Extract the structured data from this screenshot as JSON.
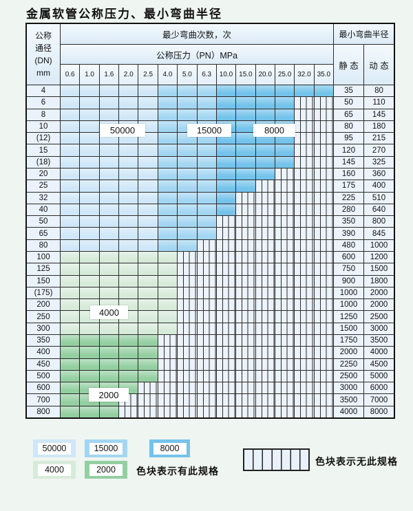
{
  "title": "金属软管公称压力、最小弯曲半径",
  "table": {
    "corner_header_lines": [
      "公称",
      "通径",
      "(DN)",
      "mm"
    ],
    "bend_cycles_header": "最少弯曲次数，次",
    "pressure_header": "公称压力（PN）MPa",
    "radius_header": "最小弯曲半径",
    "static_header": "静 态",
    "dynamic_header": "动 态",
    "pressure_columns": [
      "0.6",
      "1.0",
      "1.6",
      "2.0",
      "2.5",
      "4.0",
      "5.0",
      "6.3",
      "10.0",
      "15.0",
      "20.0",
      "25.0",
      "32.0",
      "35.0"
    ],
    "blue_column_shades": [
      "blue_50000",
      "blue_50000",
      "blue_50000",
      "blue_50000",
      "blue_50000",
      "blue_15000",
      "blue_15000",
      "blue_15000",
      "blue_8000",
      "blue_8000",
      "blue_8000",
      "blue_8000",
      "blue_8000",
      "blue_8000"
    ],
    "rows": [
      {
        "dn": "4",
        "band": "blue",
        "colored_through": "35.0",
        "static": "35",
        "dynamic": "80"
      },
      {
        "dn": "6",
        "band": "blue",
        "colored_through": "25.0",
        "static": "50",
        "dynamic": "110"
      },
      {
        "dn": "8",
        "band": "blue",
        "colored_through": "25.0",
        "static": "65",
        "dynamic": "145"
      },
      {
        "dn": "10",
        "band": "blue",
        "colored_through": "25.0",
        "static": "80",
        "dynamic": "180"
      },
      {
        "dn": "(12)",
        "band": "blue",
        "colored_through": "25.0",
        "static": "95",
        "dynamic": "215"
      },
      {
        "dn": "15",
        "band": "blue",
        "colored_through": "25.0",
        "static": "120",
        "dynamic": "270"
      },
      {
        "dn": "(18)",
        "band": "blue",
        "colored_through": "25.0",
        "static": "145",
        "dynamic": "325"
      },
      {
        "dn": "20",
        "band": "blue",
        "colored_through": "20.0",
        "static": "160",
        "dynamic": "360"
      },
      {
        "dn": "25",
        "band": "blue",
        "colored_through": "15.0",
        "static": "175",
        "dynamic": "400"
      },
      {
        "dn": "32",
        "band": "blue",
        "colored_through": "10.0",
        "static": "225",
        "dynamic": "510"
      },
      {
        "dn": "40",
        "band": "blue",
        "colored_through": "10.0",
        "static": "280",
        "dynamic": "640"
      },
      {
        "dn": "50",
        "band": "blue",
        "colored_through": "6.3",
        "static": "350",
        "dynamic": "800"
      },
      {
        "dn": "65",
        "band": "blue",
        "colored_through": "6.3",
        "static": "390",
        "dynamic": "845"
      },
      {
        "dn": "80",
        "band": "blue",
        "colored_through": "5.0",
        "static": "480",
        "dynamic": "1000"
      },
      {
        "dn": "100",
        "band": "green_4000",
        "colored_through": "4.0",
        "static": "600",
        "dynamic": "1200"
      },
      {
        "dn": "125",
        "band": "green_4000",
        "colored_through": "4.0",
        "static": "750",
        "dynamic": "1500"
      },
      {
        "dn": "150",
        "band": "green_4000",
        "colored_through": "4.0",
        "static": "900",
        "dynamic": "1800"
      },
      {
        "dn": "(175)",
        "band": "green_4000",
        "colored_through": "4.0",
        "static": "1000",
        "dynamic": "2000"
      },
      {
        "dn": "200",
        "band": "green_4000",
        "colored_through": "4.0",
        "static": "1000",
        "dynamic": "2000"
      },
      {
        "dn": "250",
        "band": "green_4000",
        "colored_through": "4.0",
        "static": "1250",
        "dynamic": "2500"
      },
      {
        "dn": "300",
        "band": "green_4000",
        "colored_through": "4.0",
        "static": "1500",
        "dynamic": "3000"
      },
      {
        "dn": "350",
        "band": "green_2000",
        "colored_through": "2.5",
        "static": "1750",
        "dynamic": "3500"
      },
      {
        "dn": "400",
        "band": "green_2000",
        "colored_through": "2.5",
        "static": "2000",
        "dynamic": "4000"
      },
      {
        "dn": "450",
        "band": "green_2000",
        "colored_through": "2.5",
        "static": "2250",
        "dynamic": "4500"
      },
      {
        "dn": "500",
        "band": "green_2000",
        "colored_through": "2.5",
        "static": "2500",
        "dynamic": "5000"
      },
      {
        "dn": "600",
        "band": "green_2000",
        "colored_through": "2.0",
        "static": "3000",
        "dynamic": "6000"
      },
      {
        "dn": "700",
        "band": "green_2000",
        "colored_through": "1.6",
        "static": "3500",
        "dynamic": "7000"
      },
      {
        "dn": "800",
        "band": "green_2000",
        "colored_through": "1.6",
        "static": "4000",
        "dynamic": "8000"
      }
    ]
  },
  "overlay_labels": [
    {
      "text": "50000"
    },
    {
      "text": "15000"
    },
    {
      "text": "8000"
    },
    {
      "text": "4000"
    },
    {
      "text": "2000"
    }
  ],
  "legend": {
    "swatches": [
      {
        "label": "50000",
        "shade": "blue_50000"
      },
      {
        "label": "15000",
        "shade": "blue_15000"
      },
      {
        "label": "8000",
        "shade": "blue_8000"
      },
      {
        "label": "4000",
        "shade": "green_4000"
      },
      {
        "label": "2000",
        "shade": "green_2000"
      }
    ],
    "has_spec_text": "色块表示有此规格",
    "no_spec_text": "色块表示无此规格"
  },
  "colors": {
    "blue_50000": "#cfe7f8",
    "blue_15000": "#a3d6f2",
    "blue_8000": "#74c3eb",
    "green_4000": "#d7ebda",
    "green_2000": "#94cfa1",
    "page_bg": "#eff5f0",
    "hatch_bg": "#ecf3fb",
    "grid_line": "#2a2a2a"
  }
}
